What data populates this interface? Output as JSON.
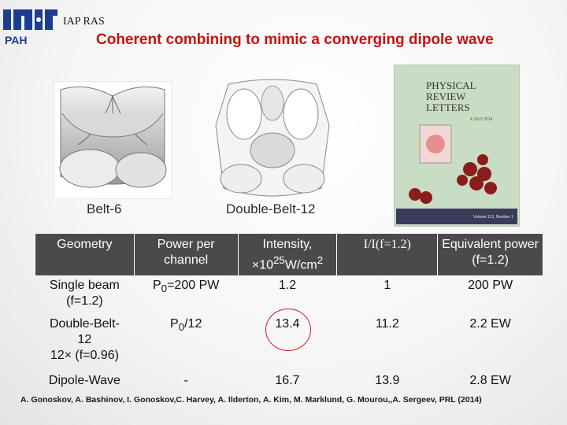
{
  "header": {
    "org": "IAP RAS",
    "title": "Coherent combining to mimic a converging dipole wave",
    "logo_text": "PAH"
  },
  "figures": {
    "belt6_caption": "Belt-6",
    "belt12_caption": "Double-Belt-12",
    "journal": {
      "name_line1": "PHYSICAL",
      "name_line2": "REVIEW",
      "name_line3": "LETTERS",
      "date_text": "4 JULY 2014",
      "footer_text": "Volume 113, Number 1"
    }
  },
  "table": {
    "headers": {
      "geometry": "Geometry",
      "power": "Power per channel",
      "intensity_main": "Intensity,",
      "intensity_unit_pre": "×10",
      "intensity_exp": "25",
      "intensity_unit_mid": "W/cm",
      "intensity_unit_exp": "2",
      "ratio": "I/I(f=1.2)",
      "equiv": "Equivalent power (f=1.2)"
    },
    "rows": [
      {
        "geometry_line1": "Single beam",
        "geometry_line2": "(f=1.2)",
        "power_main": "P",
        "power_sub": "0",
        "power_rest": "=200 PW",
        "intensity": "1.2",
        "ratio": "1",
        "equiv": "200 PW"
      },
      {
        "geometry_line1": "Double-Belt-",
        "geometry_line2": "12",
        "geometry_line3": "12× (f=0.96)",
        "power_main": "P",
        "power_sub": "0",
        "power_rest": "/12",
        "intensity": "13.4",
        "ratio": "11.2",
        "equiv": "2.2 EW"
      },
      {
        "geometry_line1": "Dipole-Wave",
        "power_rest": "-",
        "intensity": "16.7",
        "ratio": "13.9",
        "equiv": "2.8 EW"
      }
    ]
  },
  "reference": "A. Gonoskov, A. Bashinov, I. Gonoskov,C. Harvey, A. Ilderton, A. Kim, M. Marklund, G. Mourou,,A. Sergeev, PRL (2014)",
  "colors": {
    "title": "#cc1010",
    "header_row": "#4a4a4a",
    "circle": "#cc2222",
    "journal_bg": "#c9dcc4"
  }
}
